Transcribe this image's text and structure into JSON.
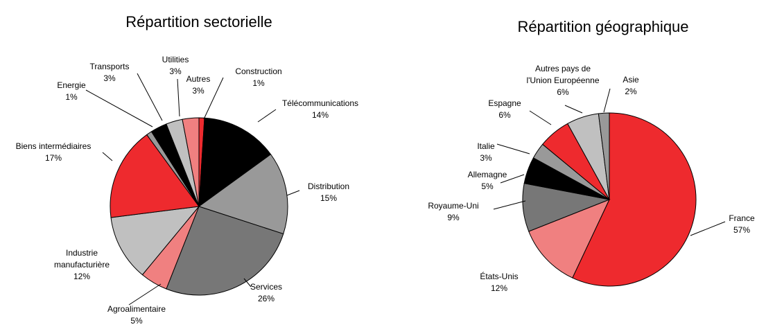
{
  "chart_data": [
    {
      "type": "pie",
      "title": "Répartition sectorielle",
      "categories": [
        "Construction",
        "Télécommunications",
        "Distribution",
        "Services",
        "Agroalimentaire",
        "Industrie\nmanufacturière",
        "Biens intermédiaires",
        "Energie",
        "Transports",
        "Utilities",
        "Autres"
      ],
      "values": [
        1,
        14,
        15,
        26,
        5,
        12,
        17,
        1,
        3,
        3,
        3
      ],
      "value_labels": [
        "1%",
        "14%",
        "15%",
        "26%",
        "5%",
        "12%",
        "17%",
        "1%",
        "3%",
        "3%",
        "3%"
      ],
      "colors": [
        "#ee2a2e",
        "#000000",
        "#999999",
        "#777777",
        "#f08080",
        "#c0c0c0",
        "#ee2a2e",
        "#999999",
        "#000000",
        "#c0c0c0",
        "#f08080"
      ]
    },
    {
      "type": "pie",
      "title": "Répartition géographique",
      "categories": [
        "France",
        "États-Unis",
        "Royaume-Uni",
        "Allemagne",
        "Italie",
        "Espagne",
        "Autres pays de\nl'Union Européenne",
        "Asie"
      ],
      "values": [
        57,
        12,
        9,
        5,
        3,
        6,
        6,
        2
      ],
      "value_labels": [
        "57%",
        "12%",
        "9%",
        "5%",
        "3%",
        "6%",
        "6%",
        "2%"
      ],
      "colors": [
        "#ee2a2e",
        "#f08080",
        "#777777",
        "#000000",
        "#999999",
        "#ee2a2e",
        "#c0c0c0",
        "#999999"
      ]
    }
  ]
}
